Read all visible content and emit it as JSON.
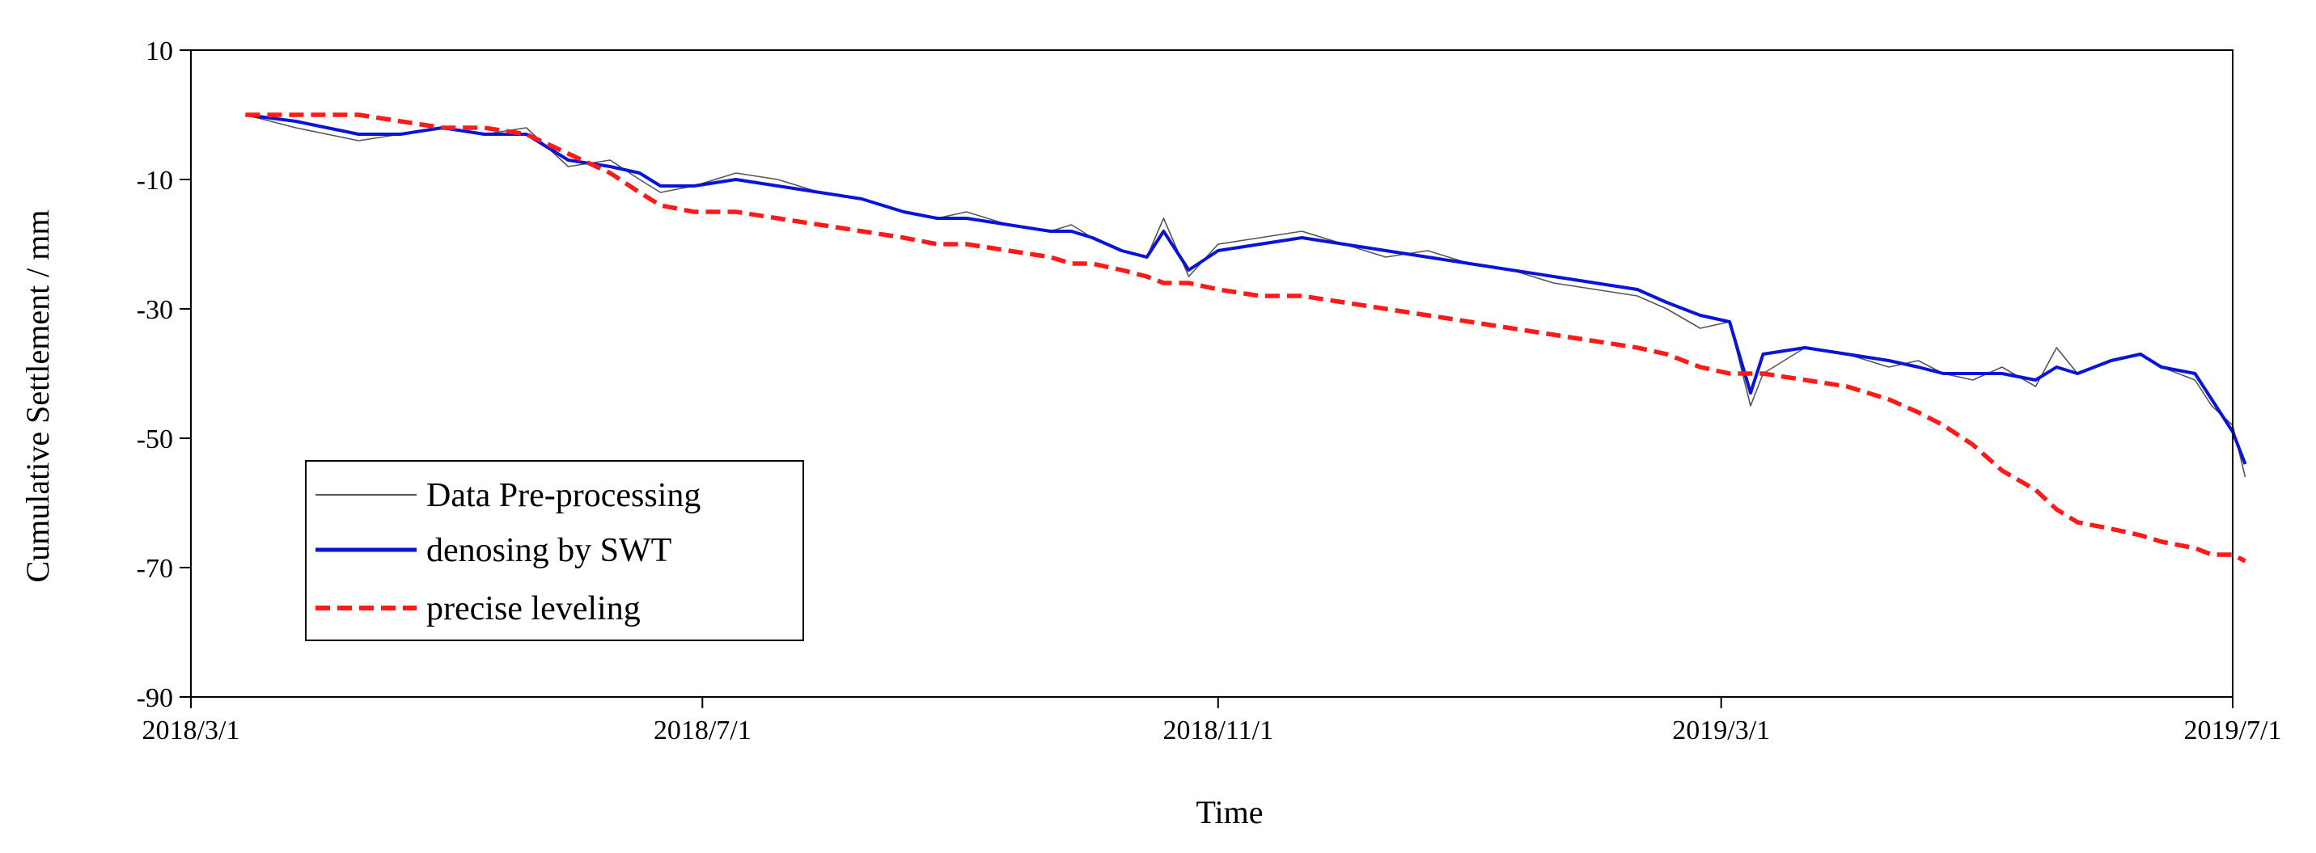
{
  "chart_data": {
    "type": "line",
    "title": "",
    "xlabel": "Time",
    "ylabel": "Cumulative Settlement / mm",
    "x_ticks": [
      "2018/3/1",
      "2018/7/1",
      "2018/11/1",
      "2019/3/1",
      "2019/7/1"
    ],
    "y_ticks": [
      10,
      -10,
      -30,
      -50,
      -70,
      -90
    ],
    "xlim": [
      "2018/3/1",
      "2019/7/1"
    ],
    "ylim": [
      -90,
      10
    ],
    "grid": false,
    "legend_position": "bottom-left",
    "x_days": [
      13,
      25,
      40,
      50,
      60,
      70,
      80,
      90,
      100,
      107,
      112,
      120,
      130,
      140,
      150,
      160,
      170,
      178,
      185,
      195,
      205,
      210,
      215,
      222,
      228,
      232,
      238,
      245,
      255,
      265,
      275,
      285,
      295,
      305,
      315,
      325,
      335,
      345,
      352,
      360,
      367,
      372,
      375,
      385,
      395,
      405,
      412,
      418,
      425,
      432,
      440,
      445,
      450,
      458,
      465,
      470,
      478,
      482,
      487,
      490
    ],
    "series": [
      {
        "name": "Data Pre-processing",
        "color": "#555555",
        "values": [
          0,
          -2,
          -4,
          -3,
          -2,
          -3,
          -2,
          -8,
          -7,
          -10,
          -12,
          -11,
          -9,
          -10,
          -12,
          -13,
          -15,
          -16,
          -15,
          -17,
          -18,
          -17,
          -19,
          -21,
          -22,
          -16,
          -25,
          -20,
          -19,
          -18,
          -20,
          -22,
          -21,
          -23,
          -24,
          -26,
          -27,
          -28,
          -30,
          -33,
          -32,
          -45,
          -40,
          -36,
          -37,
          -39,
          -38,
          -40,
          -41,
          -39,
          -42,
          -36,
          -40,
          -38,
          -37,
          -39,
          -41,
          -45,
          -48,
          -56
        ]
      },
      {
        "name": "denosing by SWT",
        "color": "#0a14d8",
        "values": [
          0,
          -1,
          -3,
          -3,
          -2,
          -3,
          -3,
          -7,
          -8,
          -9,
          -11,
          -11,
          -10,
          -11,
          -12,
          -13,
          -15,
          -16,
          -16,
          -17,
          -18,
          -18,
          -19,
          -21,
          -22,
          -18,
          -24,
          -21,
          -20,
          -19,
          -20,
          -21,
          -22,
          -23,
          -24,
          -25,
          -26,
          -27,
          -29,
          -31,
          -32,
          -43,
          -37,
          -36,
          -37,
          -38,
          -39,
          -40,
          -40,
          -40,
          -41,
          -39,
          -40,
          -38,
          -37,
          -39,
          -40,
          -44,
          -49,
          -54
        ]
      },
      {
        "name": "precise leveling",
        "color": "#ff1a1a",
        "values": [
          0,
          0,
          0,
          -1,
          -2,
          -2,
          -3,
          -6,
          -9,
          -12,
          -14,
          -15,
          -15,
          -16,
          -17,
          -18,
          -19,
          -20,
          -20,
          -21,
          -22,
          -23,
          -23,
          -24,
          -25,
          -26,
          -26,
          -27,
          -28,
          -28,
          -29,
          -30,
          -31,
          -32,
          -33,
          -34,
          -35,
          -36,
          -37,
          -39,
          -40,
          -40,
          -40,
          -41,
          -42,
          -44,
          -46,
          -48,
          -51,
          -55,
          -58,
          -61,
          -63,
          -64,
          -65,
          -66,
          -67,
          -68,
          -68,
          -69
        ]
      }
    ]
  }
}
